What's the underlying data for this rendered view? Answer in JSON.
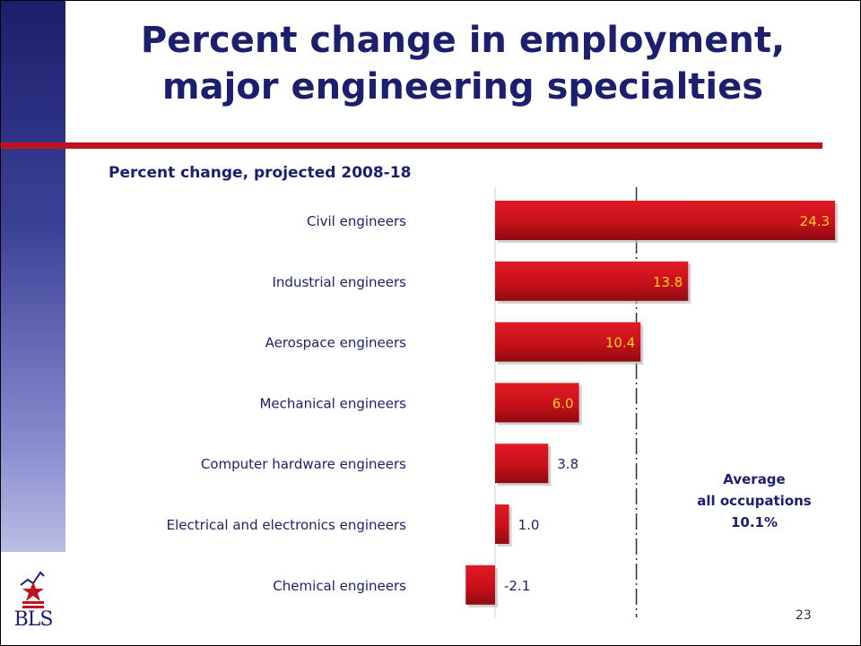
{
  "slide": {
    "title_line1": "Percent change in employment,",
    "title_line2": "major engineering specialties",
    "page_number": "23",
    "logo_text": "BLS"
  },
  "colors": {
    "title": "#1b1f6e",
    "accent_rule": "#c1121f",
    "bar": "#c8101a",
    "bar_label_inside": "#ffd21f"
  },
  "chart_data": {
    "type": "bar",
    "orientation": "horizontal",
    "title": "Percent change, projected 2008-18",
    "categories": [
      "Civil engineers",
      "Industrial engineers",
      "Aerospace engineers",
      "Mechanical engineers",
      "Computer hardware engineers",
      "Electrical and electronics engineers",
      "Chemical engineers"
    ],
    "values": [
      24.3,
      13.8,
      10.4,
      6.0,
      3.8,
      1.0,
      -2.1
    ],
    "value_labels": [
      "24.3",
      "13.8",
      "10.4",
      "6.0",
      "3.8",
      "1.0",
      "-2.1"
    ],
    "reference_line": {
      "value": 10.1,
      "label_lines": [
        "Average",
        "all occupations",
        "10.1%"
      ]
    },
    "xlim": [
      -2.1,
      24.3
    ],
    "grid": false,
    "legend": "none"
  }
}
